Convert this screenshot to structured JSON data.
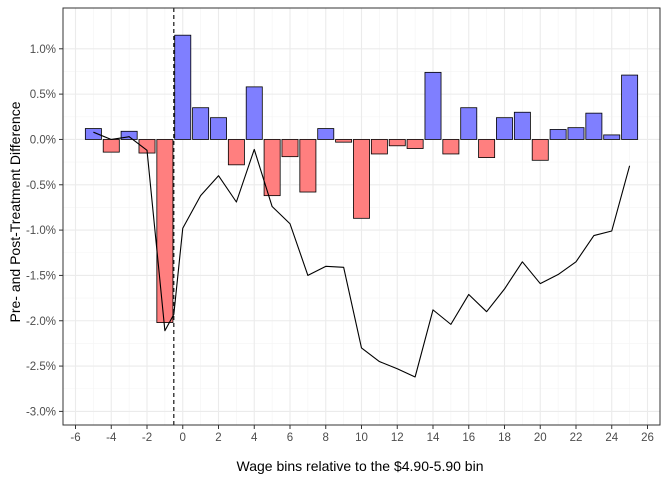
{
  "chart_data": {
    "type": "bar",
    "xlabel": "Wage bins relative to the $4.90-5.90 bin",
    "ylabel": "Pre- and Post-Treatment Difference",
    "xlim": [
      -6.7,
      26.7
    ],
    "ylim": [
      -0.0315,
      0.0145
    ],
    "x_ticks": [
      -6,
      -4,
      -2,
      0,
      2,
      4,
      6,
      8,
      10,
      12,
      14,
      16,
      18,
      20,
      22,
      24,
      26
    ],
    "x_tick_labels": [
      "-6",
      "-4",
      "-2",
      "0",
      "2",
      "4",
      "6",
      "8",
      "10",
      "12",
      "14",
      "16",
      "18",
      "20",
      "22",
      "24",
      "26"
    ],
    "y_ticks": [
      0.01,
      0.005,
      0.0,
      -0.005,
      -0.01,
      -0.015,
      -0.02,
      -0.025,
      -0.03
    ],
    "y_tick_labels": [
      "1.0%",
      "0.5%",
      "0.0%",
      "-0.5%",
      "-1.0%",
      "-1.5%",
      "-2.0%",
      "-2.5%",
      "-3.0%"
    ],
    "grid": true,
    "bar_width": 0.9,
    "colors": {
      "positive": "#7f7fff",
      "negative": "#ff7f7f",
      "bar_outline": "#000000",
      "line": "#000000",
      "grid_major": "#ebebeb",
      "grid_minor": "#f4f4f4",
      "panel_border": "#333333"
    },
    "vline": {
      "x": -0.5,
      "style": "dashed"
    },
    "bars": {
      "x": [
        -5,
        -4,
        -3,
        -2,
        -1,
        0,
        1,
        2,
        3,
        4,
        5,
        6,
        7,
        8,
        9,
        10,
        11,
        12,
        13,
        14,
        15,
        16,
        17,
        18,
        19,
        20,
        21,
        22,
        23,
        24,
        25
      ],
      "values": [
        0.0012,
        -0.0014,
        0.0009,
        -0.0015,
        -0.0202,
        0.0115,
        0.0035,
        0.0024,
        -0.0028,
        0.0058,
        -0.0062,
        -0.0019,
        -0.0058,
        0.0012,
        -0.0003,
        -0.0087,
        -0.0016,
        -0.0007,
        -0.001,
        0.0074,
        -0.0016,
        0.0035,
        -0.002,
        0.0024,
        0.003,
        -0.0023,
        0.0011,
        0.0013,
        0.0029,
        0.0005,
        0.0071
      ]
    },
    "line": {
      "x": [
        -5,
        -4,
        -3,
        -2,
        -1,
        -0.5,
        0,
        1,
        2,
        3,
        4,
        5,
        6,
        7,
        8,
        9,
        10,
        11,
        12,
        13,
        14,
        15,
        16,
        17,
        18,
        19,
        20,
        21,
        22,
        23,
        24,
        25
      ],
      "values": [
        0.0008,
        0.0,
        0.0003,
        -0.0012,
        -0.0211,
        -0.0193,
        -0.0098,
        -0.0062,
        -0.004,
        -0.0069,
        -0.0011,
        -0.0074,
        -0.0093,
        -0.015,
        -0.014,
        -0.0141,
        -0.023,
        -0.0245,
        -0.0253,
        -0.0262,
        -0.0188,
        -0.0204,
        -0.0171,
        -0.019,
        -0.0165,
        -0.0135,
        -0.0159,
        -0.0149,
        -0.0135,
        -0.0106,
        -0.0101,
        -0.0029
      ]
    }
  }
}
